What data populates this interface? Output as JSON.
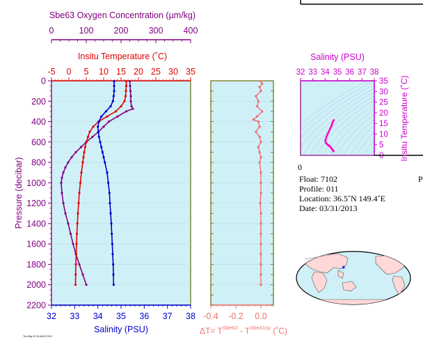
{
  "colors": {
    "oxygen": "#800080",
    "temperature": "#e00000",
    "salinity": "#0000cc",
    "delta": "#f07070",
    "ts": "#ff00cc",
    "plot_bg": "#d0f0f8",
    "frame": "#6a6a00",
    "axis_purple": "#800080"
  },
  "chart_data": [
    {
      "type": "line",
      "title_oxygen_axis": "Sbe63 Oxygen Concentration (µm/kg)",
      "title_temperature_axis": "Insitu Temperature (˚C)",
      "xlabel": "Salinity (PSU)",
      "ylabel": "Pressure (decibar)",
      "ylim": [
        2200,
        0
      ],
      "yticks": [
        "0",
        "200",
        "400",
        "600",
        "800",
        "1000",
        "1200",
        "1400",
        "1600",
        "1800",
        "2000",
        "2200"
      ],
      "oxygen_axis": {
        "range": [
          0,
          400
        ],
        "ticks": [
          "0",
          "100",
          "200",
          "300",
          "400"
        ]
      },
      "temperature_axis": {
        "range": [
          -5,
          35
        ],
        "ticks": [
          "-5",
          "0",
          "5",
          "10",
          "15",
          "20",
          "25",
          "30",
          "35"
        ]
      },
      "salinity_axis": {
        "range": [
          32,
          38
        ],
        "ticks": [
          "32",
          "33",
          "34",
          "35",
          "36",
          "37",
          "38"
        ]
      },
      "series": [
        {
          "key": "salinity",
          "pressure": [
            5,
            50,
            100,
            150,
            200,
            250,
            300,
            350,
            400,
            450,
            500,
            550,
            600,
            650,
            700,
            750,
            800,
            900,
            1000,
            1100,
            1200,
            1300,
            1400,
            1500,
            1600,
            1700,
            1800,
            1900,
            2000
          ],
          "values": [
            34.7,
            34.7,
            34.7,
            34.68,
            34.65,
            34.55,
            34.35,
            34.15,
            34.05,
            34.0,
            34.02,
            34.05,
            34.1,
            34.15,
            34.2,
            34.25,
            34.3,
            34.4,
            34.45,
            34.5,
            34.52,
            34.55,
            34.58,
            34.6,
            34.62,
            34.64,
            34.66,
            34.67,
            34.68
          ]
        },
        {
          "key": "temperature",
          "pressure": [
            5,
            50,
            100,
            150,
            200,
            250,
            300,
            350,
            400,
            450,
            500,
            550,
            600,
            650,
            700,
            750,
            800,
            900,
            1000,
            1100,
            1200,
            1300,
            1400,
            1500,
            1600,
            1700,
            1800,
            1900,
            2000
          ],
          "values": [
            16.5,
            16.5,
            16.4,
            16.3,
            16.0,
            15.0,
            13.5,
            11.0,
            8.5,
            7.0,
            6.0,
            5.5,
            5.0,
            4.7,
            4.4,
            4.2,
            4.0,
            3.6,
            3.3,
            3.0,
            2.8,
            2.6,
            2.45,
            2.3,
            2.2,
            2.1,
            2.0,
            1.95,
            1.9
          ]
        },
        {
          "key": "oxygen",
          "pressure": [
            5,
            50,
            100,
            150,
            200,
            250,
            275,
            300,
            350,
            400,
            450,
            500,
            550,
            600,
            650,
            700,
            750,
            800,
            850,
            900,
            950,
            1000,
            1100,
            1200,
            1300,
            1400,
            1500,
            1600,
            1700,
            1800,
            1900,
            2000
          ],
          "values": [
            225,
            226,
            227,
            228,
            228,
            230,
            234,
            215,
            190,
            165,
            150,
            135,
            118,
            100,
            85,
            70,
            58,
            48,
            40,
            34,
            30,
            28,
            30,
            34,
            40,
            48,
            55,
            62,
            70,
            80,
            90,
            100
          ]
        }
      ]
    },
    {
      "type": "line",
      "xlabel": "ΔT= T",
      "xlabel_sub1": "Sbe63",
      "xlabel_mid": " - T",
      "xlabel_sub2": "Sbe41cp",
      "xlabel_tail": " (˚C)",
      "xlim": [
        -0.4,
        0.1
      ],
      "xticks": [
        "-0.4",
        "-0.2",
        "0.0"
      ],
      "series": [
        {
          "key": "delta",
          "pressure": [
            5,
            30,
            60,
            100,
            150,
            200,
            250,
            300,
            350,
            380,
            400,
            450,
            500,
            550,
            600,
            650,
            700,
            750,
            800,
            900,
            1000,
            1100,
            1200,
            1300,
            1400,
            1500,
            1600,
            1700,
            1800,
            1900,
            2000
          ],
          "values": [
            0.0,
            0.01,
            -0.01,
            0.0,
            -0.04,
            -0.02,
            -0.03,
            0.01,
            -0.03,
            -0.06,
            -0.02,
            -0.01,
            -0.04,
            -0.01,
            0.0,
            -0.02,
            -0.01,
            0.0,
            -0.01,
            0.0,
            0.0,
            0.0,
            -0.005,
            0.0,
            0.0,
            0.0,
            0.0,
            0.0,
            0.0,
            0.0,
            0.0
          ]
        }
      ]
    },
    {
      "type": "line",
      "title": "Salinity (PSU)",
      "ylabel": "Insitu Temperature (˚C)",
      "xlim": [
        32,
        38
      ],
      "ylim": [
        0,
        35
      ],
      "xticks": [
        "32",
        "33",
        "34",
        "35",
        "36",
        "37",
        "38"
      ],
      "yticks": [
        "0",
        "5",
        "10",
        "15",
        "20",
        "25",
        "30",
        "35"
      ],
      "series": [
        {
          "key": "ts",
          "salinity": [
            34.68,
            34.65,
            34.6,
            34.55,
            34.48,
            34.42,
            34.35,
            34.28,
            34.2,
            34.12,
            34.05,
            34.02,
            34.1,
            34.2,
            34.3,
            34.4,
            34.5,
            34.55,
            34.65,
            34.7
          ],
          "temperature": [
            1.9,
            2.2,
            2.6,
            3.0,
            3.6,
            4.0,
            4.4,
            4.7,
            5.0,
            5.5,
            6.0,
            7.0,
            8.5,
            10.0,
            11.0,
            12.5,
            13.5,
            14.5,
            16.0,
            16.5
          ]
        }
      ]
    }
  ],
  "info": {
    "zero_label": "0",
    "right_letter": "P",
    "float": "Float:  7102",
    "profile": "Profile:  011",
    "location": "Location:  36.5˚N  149.4˚E",
    "date": "Date:  03/31/2013"
  },
  "footer_stamp": "Thu May 23 14:48:32 2013"
}
